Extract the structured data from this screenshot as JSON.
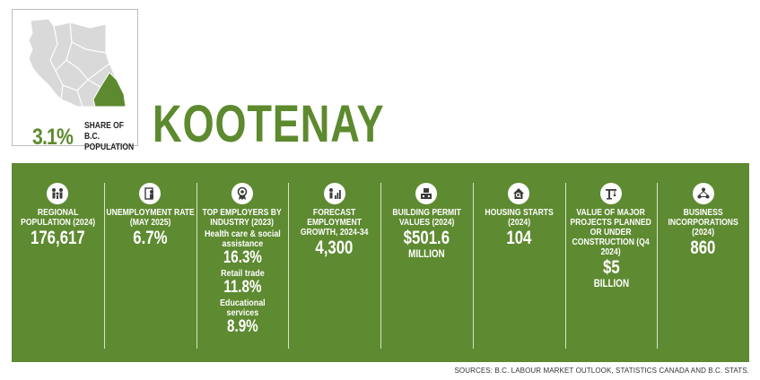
{
  "header": {
    "share_percent": "3.1%",
    "share_label": "SHARE OF B.C. POPULATION",
    "region_name": "KOOTENAY"
  },
  "colors": {
    "panel_green": "#5e8a31",
    "highlight_green": "#5d8a2e",
    "map_grey": "#d9d9d9"
  },
  "stats": [
    {
      "icon": "family-icon",
      "label": "REGIONAL POPULATION (2024)",
      "value": "176,617"
    },
    {
      "icon": "person-resume-icon",
      "label": "UNEMPLOYMENT RATE (MAY 2025)",
      "value": "6.7%"
    },
    {
      "icon": "award-ribbon-icon",
      "label": "TOP EMPLOYERS BY INDUSTRY (2023)",
      "industries": [
        {
          "name": "Health care & social assistance",
          "value": "16.3%"
        },
        {
          "name": "Retail trade",
          "value": "11.8%"
        },
        {
          "name": "Educational services",
          "value": "8.9%"
        }
      ]
    },
    {
      "icon": "person-growth-chart-icon",
      "label": "FORECAST EMPLOYMENT GROWTH, 2024-34",
      "value": "4,300"
    },
    {
      "icon": "building-permit-icon",
      "label": "BUILDING PERMIT VALUES (2024)",
      "value": "$501.6",
      "unit": "MILLION"
    },
    {
      "icon": "house-search-icon",
      "label": "HOUSING STARTS (2024)",
      "value": "104"
    },
    {
      "icon": "construction-crane-icon",
      "label": "VALUE OF MAJOR PROJECTS PLANNED OR UNDER CONSTRUCTION (Q4 2024)",
      "value": "$5",
      "unit": "BILLION"
    },
    {
      "icon": "business-network-icon",
      "label": "BUSINESS INCORPORATIONS (2024)",
      "value": "860"
    }
  ],
  "footer": {
    "sources": "SOURCES: B.C. LABOUR MARKET OUTLOOK, STATISTICS CANADA AND B.C. STATS."
  }
}
